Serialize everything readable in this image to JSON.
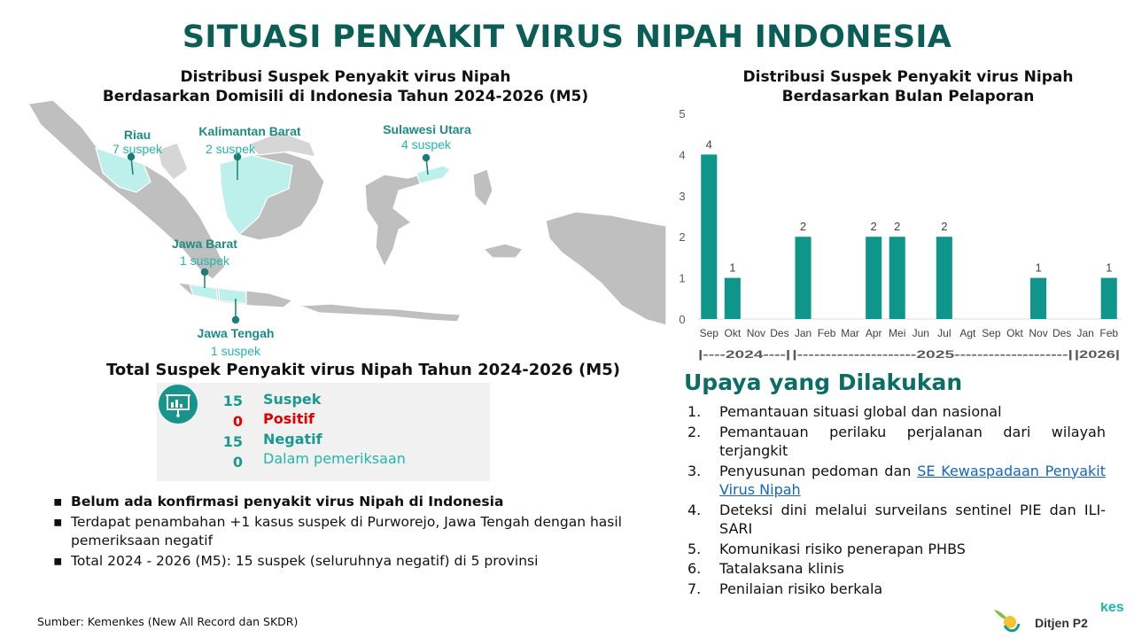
{
  "title": "SITUASI PENYAKIT VIRUS NIPAH INDONESIA",
  "map_section": {
    "title_line1": "Distribusi Suspek Penyakit virus Nipah",
    "title_line2": "Berdasarkan Domisili di Indonesia Tahun 2024-2026 (M5)",
    "provinces": [
      {
        "name": "Riau",
        "count": "7 suspek"
      },
      {
        "name": "Kalimantan Barat",
        "count": "2 suspek"
      },
      {
        "name": "Sulawesi Utara",
        "count": "4 suspek"
      },
      {
        "name": "Jawa Barat",
        "count": "1 suspek"
      },
      {
        "name": "Jawa Tengah",
        "count": "1 suspek"
      }
    ]
  },
  "total_section": {
    "title": "Total Suspek Penyakit virus Nipah Tahun 2024-2026 (M5)",
    "icon": "presentation-board-icon",
    "rows": [
      {
        "value": "15",
        "label": "Suspek",
        "color": "#1a9a8f"
      },
      {
        "value": "0",
        "label": "Positif",
        "color": "#e00000"
      },
      {
        "value": "15",
        "label": "Negatif",
        "color": "#1a9a8f"
      },
      {
        "value": "0",
        "label": "Dalam pemeriksaan",
        "color": "#23b5aa"
      }
    ]
  },
  "notes": [
    "Belum ada konfirmasi penyakit virus Nipah di Indonesia",
    "Terdapat penambahan +1 kasus suspek di Purworejo, Jawa Tengah dengan hasil pemeriksaan negatif",
    "Total 2024 - 2026 (M5): 15 suspek (seluruhnya negatif) di 5 provinsi"
  ],
  "source": "Sumber: Kemenkes (New All Record dan SKDR)",
  "chart_section": {
    "title_line1": "Distribusi Suspek Penyakit virus Nipah",
    "title_line2": "Berdasarkan Bulan Pelaporan"
  },
  "chart_data": {
    "type": "bar",
    "categories": [
      "Sep",
      "Okt",
      "Nov",
      "Des",
      "Jan",
      "Feb",
      "Mar",
      "Apr",
      "Mei",
      "Jun",
      "Jul",
      "Agt",
      "Sep",
      "Okt",
      "Nov",
      "Des",
      "Jan",
      "Feb"
    ],
    "values": [
      4,
      1,
      0,
      0,
      2,
      0,
      0,
      2,
      2,
      0,
      2,
      0,
      0,
      0,
      1,
      0,
      0,
      1
    ],
    "ylim": [
      0,
      5
    ],
    "yticks": [
      0,
      1,
      2,
      3,
      4,
      5
    ],
    "year_groups": [
      {
        "label": "|----2024----|",
        "start": 0,
        "end": 3
      },
      {
        "label": "|---------------------2025--------------------|",
        "start": 4,
        "end": 15
      },
      {
        "label": "|2026|",
        "start": 16,
        "end": 17
      }
    ],
    "bar_color": "#0e968a",
    "grid": false
  },
  "upaya": {
    "title": "Upaya yang Dilakukan",
    "items": [
      {
        "num": "1.",
        "text": "Pemantauan situasi global dan nasional",
        "link": ""
      },
      {
        "num": "2.",
        "text": "Pemantauan perilaku perjalanan dari wilayah terjangkit",
        "link": ""
      },
      {
        "num": "3.",
        "text": "Penyusunan pedoman dan ",
        "link": "SE Kewaspadaan Penyakit Virus Nipah"
      },
      {
        "num": "4.",
        "text": "Deteksi dini melalui surveilans sentinel PIE dan ILI-SARI",
        "link": ""
      },
      {
        "num": "5.",
        "text": "Komunikasi risiko penerapan PHBS",
        "link": ""
      },
      {
        "num": "6.",
        "text": "Tatalaksana klinis",
        "link": ""
      },
      {
        "num": "7.",
        "text": "Penilaian risiko berkala",
        "link": ""
      }
    ]
  },
  "logo": {
    "text": "Ditjen P2",
    "partial_text": "kes"
  }
}
